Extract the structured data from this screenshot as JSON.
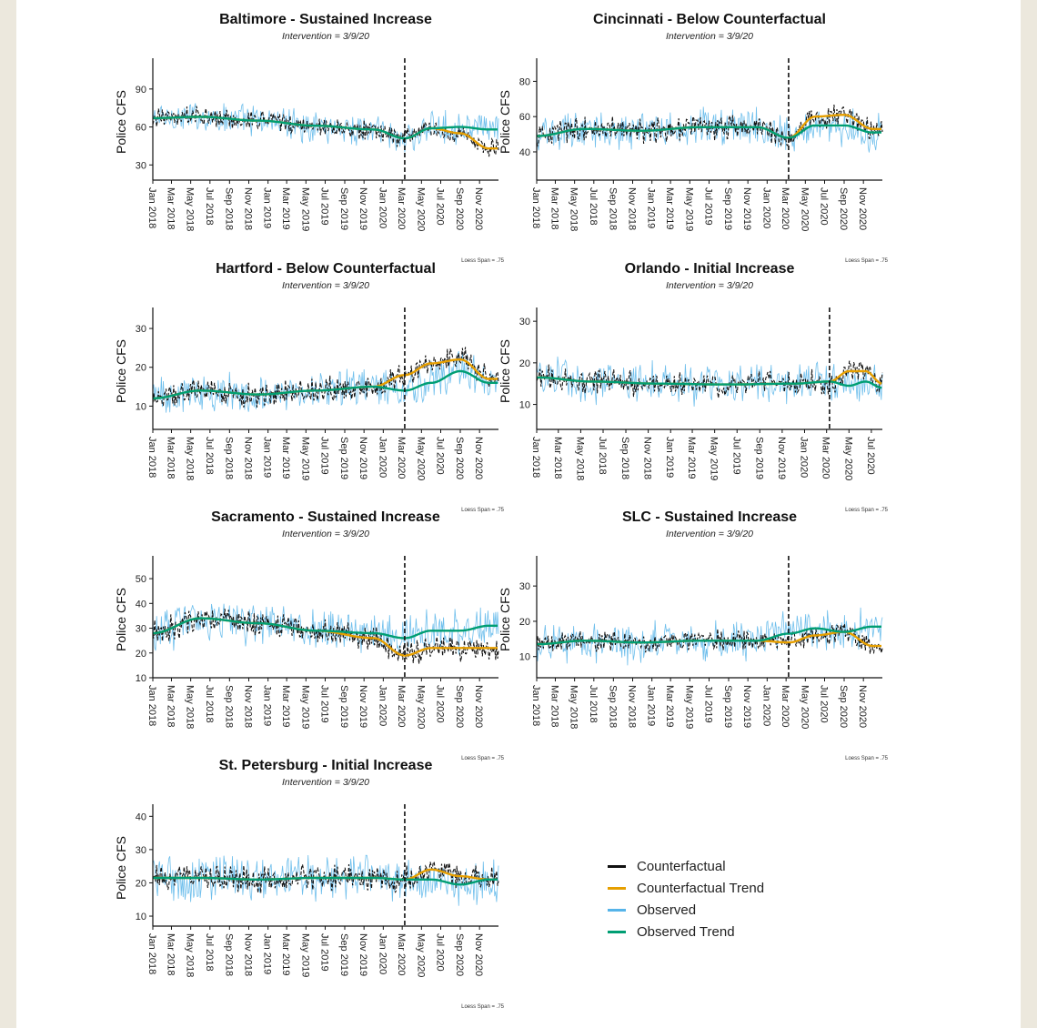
{
  "colors": {
    "counterfactual": "#111111",
    "counterfactual_trend": "#e69f00",
    "observed": "#56b4e9",
    "observed_trend": "#009e73"
  },
  "legend": {
    "items": [
      {
        "label": "Counterfactual",
        "color": "#111111"
      },
      {
        "label": "Counterfactual Trend",
        "color": "#e69f00"
      },
      {
        "label": "Observed",
        "color": "#56b4e9"
      },
      {
        "label": "Observed Trend",
        "color": "#009e73"
      }
    ]
  },
  "chart_data": [
    {
      "type": "line",
      "title": "Baltimore - Sustained Increase",
      "subtitle": "Intervention = 3/9/20",
      "ylabel": "Police CFS",
      "caption": "Loess Span = .75",
      "ylim": [
        18,
        110
      ],
      "yticks": [
        30,
        60,
        90
      ],
      "xlim": [
        "2018-01-01",
        "2020-12-31"
      ],
      "xticks": [
        "2018-01-01",
        "2018-03-01",
        "2018-05-01",
        "2018-07-01",
        "2018-09-01",
        "2018-11-01",
        "2019-01-01",
        "2019-03-01",
        "2019-05-01",
        "2019-07-01",
        "2019-09-01",
        "2019-11-01",
        "2020-01-01",
        "2020-03-01",
        "2020-05-01",
        "2020-07-01",
        "2020-09-01",
        "2020-11-01"
      ],
      "xticklabels": [
        "Jan 2018",
        "Mar 2018",
        "May 2018",
        "Jul 2018",
        "Sep 2018",
        "Nov 2018",
        "Jan 2019",
        "Mar 2019",
        "May 2019",
        "Jul 2019",
        "Sep 2019",
        "Nov 2019",
        "Jan 2020",
        "Mar 2020",
        "May 2020",
        "Jul 2020",
        "Sep 2020",
        "Nov 2020"
      ],
      "intervention": "2020-03-09",
      "series": [
        {
          "name": "Counterfactual Trend",
          "x": [
            "2018-01-01",
            "2018-06-01",
            "2018-12-01",
            "2019-06-01",
            "2019-12-01",
            "2020-03-09",
            "2020-06-01",
            "2020-09-01",
            "2020-12-01"
          ],
          "values": [
            67,
            68,
            65,
            61,
            58,
            51,
            59,
            55,
            43
          ]
        },
        {
          "name": "Observed Trend",
          "x": [
            "2018-01-01",
            "2018-06-01",
            "2018-12-01",
            "2019-06-01",
            "2019-12-01",
            "2020-03-09",
            "2020-06-01",
            "2020-09-01",
            "2020-12-01"
          ],
          "values": [
            67,
            68,
            65,
            61,
            58,
            51,
            59,
            60,
            58
          ]
        }
      ],
      "noise": {
        "observed_amp": 15,
        "counterfactual_amp": 9
      }
    },
    {
      "type": "line",
      "title": "Cincinnati - Below Counterfactual",
      "subtitle": "Intervention = 3/9/20",
      "ylabel": "Police CFS",
      "caption": "Loess Span = .75",
      "ylim": [
        24,
        90
      ],
      "yticks": [
        40,
        60,
        80
      ],
      "xlim": [
        "2018-01-01",
        "2020-12-31"
      ],
      "xticks": [
        "2018-01-01",
        "2018-03-01",
        "2018-05-01",
        "2018-07-01",
        "2018-09-01",
        "2018-11-01",
        "2019-01-01",
        "2019-03-01",
        "2019-05-01",
        "2019-07-01",
        "2019-09-01",
        "2019-11-01",
        "2020-01-01",
        "2020-03-01",
        "2020-05-01",
        "2020-07-01",
        "2020-09-01",
        "2020-11-01"
      ],
      "xticklabels": [
        "Jan 2018",
        "Mar 2018",
        "May 2018",
        "Jul 2018",
        "Sep 2018",
        "Nov 2018",
        "Jan 2019",
        "Mar 2019",
        "May 2019",
        "Jul 2019",
        "Sep 2019",
        "Nov 2019",
        "Jan 2020",
        "Mar 2020",
        "May 2020",
        "Jul 2020",
        "Sep 2020",
        "Nov 2020"
      ],
      "intervention": "2020-03-09",
      "series": [
        {
          "name": "Counterfactual Trend",
          "x": [
            "2018-01-01",
            "2018-06-01",
            "2018-12-01",
            "2019-06-01",
            "2019-12-01",
            "2020-03-09",
            "2020-06-01",
            "2020-09-01",
            "2020-12-01"
          ],
          "values": [
            49,
            53,
            52,
            54,
            54,
            48,
            60,
            61,
            53
          ]
        },
        {
          "name": "Observed Trend",
          "x": [
            "2018-01-01",
            "2018-06-01",
            "2018-12-01",
            "2019-06-01",
            "2019-12-01",
            "2020-03-09",
            "2020-06-01",
            "2020-09-01",
            "2020-12-01"
          ],
          "values": [
            49,
            53,
            52,
            54,
            54,
            48,
            55,
            55,
            51
          ]
        }
      ],
      "noise": {
        "observed_amp": 13,
        "counterfactual_amp": 8
      }
    },
    {
      "type": "line",
      "title": "Hartford - Below Counterfactual",
      "subtitle": "Intervention = 3/9/20",
      "ylabel": "Police CFS",
      "caption": "Loess Span = .75",
      "ylim": [
        4,
        34
      ],
      "yticks": [
        10,
        20,
        30
      ],
      "xlim": [
        "2018-01-01",
        "2020-12-31"
      ],
      "xticks": [
        "2018-01-01",
        "2018-03-01",
        "2018-05-01",
        "2018-07-01",
        "2018-09-01",
        "2018-11-01",
        "2019-01-01",
        "2019-03-01",
        "2019-05-01",
        "2019-07-01",
        "2019-09-01",
        "2019-11-01",
        "2020-01-01",
        "2020-03-01",
        "2020-05-01",
        "2020-07-01",
        "2020-09-01",
        "2020-11-01"
      ],
      "xticklabels": [
        "Jan 2018",
        "Mar 2018",
        "May 2018",
        "Jul 2018",
        "Sep 2018",
        "Nov 2018",
        "Jan 2019",
        "Mar 2019",
        "May 2019",
        "Jul 2019",
        "Sep 2019",
        "Nov 2019",
        "Jan 2020",
        "Mar 2020",
        "May 2020",
        "Jul 2020",
        "Sep 2020",
        "Nov 2020"
      ],
      "intervention": "2020-03-09",
      "series": [
        {
          "name": "Counterfactual Trend",
          "x": [
            "2018-01-01",
            "2018-06-01",
            "2018-12-01",
            "2019-06-01",
            "2019-12-01",
            "2020-03-09",
            "2020-06-01",
            "2020-09-01",
            "2020-12-01"
          ],
          "values": [
            12,
            14,
            13,
            14,
            15,
            18,
            21,
            22,
            17
          ]
        },
        {
          "name": "Observed Trend",
          "x": [
            "2018-01-01",
            "2018-06-01",
            "2018-12-01",
            "2019-06-01",
            "2019-12-01",
            "2020-03-09",
            "2020-06-01",
            "2020-09-01",
            "2020-12-01"
          ],
          "values": [
            12,
            14,
            13,
            14,
            15,
            14,
            16,
            19,
            16
          ]
        }
      ],
      "noise": {
        "observed_amp": 6,
        "counterfactual_amp": 4
      }
    },
    {
      "type": "line",
      "title": "Orlando - Initial Increase",
      "subtitle": "Intervention = 3/9/20",
      "ylabel": "Police CFS",
      "caption": "Loess Span = .75",
      "ylim": [
        4,
        32
      ],
      "yticks": [
        10,
        20,
        30
      ],
      "xlim": [
        "2018-01-01",
        "2020-07-31"
      ],
      "xticks": [
        "2018-01-01",
        "2018-03-01",
        "2018-05-01",
        "2018-07-01",
        "2018-09-01",
        "2018-11-01",
        "2019-01-01",
        "2019-03-01",
        "2019-05-01",
        "2019-07-01",
        "2019-09-01",
        "2019-11-01",
        "2020-01-01",
        "2020-03-01",
        "2020-05-01",
        "2020-07-01"
      ],
      "xticklabels": [
        "Jan 2018",
        "Mar 2018",
        "May 2018",
        "Jul 2018",
        "Sep 2018",
        "Nov 2018",
        "Jan 2019",
        "Mar 2019",
        "May 2019",
        "Jul 2019",
        "Sep 2019",
        "Nov 2019",
        "Jan 2020",
        "Mar 2020",
        "May 2020",
        "Jul 2020"
      ],
      "intervention": "2020-03-09",
      "series": [
        {
          "name": "Counterfactual Trend",
          "x": [
            "2018-01-01",
            "2018-06-01",
            "2018-12-01",
            "2019-06-01",
            "2019-12-01",
            "2020-03-09",
            "2020-05-01",
            "2020-06-15",
            "2020-07-31"
          ],
          "values": [
            16.5,
            15.5,
            15,
            14.8,
            15,
            15.5,
            18,
            18,
            15
          ]
        },
        {
          "name": "Observed Trend",
          "x": [
            "2018-01-01",
            "2018-06-01",
            "2018-12-01",
            "2019-06-01",
            "2019-12-01",
            "2020-03-09",
            "2020-05-01",
            "2020-06-15",
            "2020-07-31"
          ],
          "values": [
            16.5,
            15.5,
            15,
            14.8,
            15,
            15.5,
            14.5,
            15.5,
            14
          ]
        }
      ],
      "noise": {
        "observed_amp": 6,
        "counterfactual_amp": 3.5
      }
    },
    {
      "type": "line",
      "title": "Sacramento - Sustained Increase",
      "subtitle": "Intervention = 3/9/20",
      "ylabel": "Police CFS",
      "caption": "Loess Span = .75",
      "ylim": [
        10,
        57
      ],
      "yticks": [
        10,
        20,
        30,
        40,
        50
      ],
      "xlim": [
        "2018-01-01",
        "2020-12-31"
      ],
      "xticks": [
        "2018-01-01",
        "2018-03-01",
        "2018-05-01",
        "2018-07-01",
        "2018-09-01",
        "2018-11-01",
        "2019-01-01",
        "2019-03-01",
        "2019-05-01",
        "2019-07-01",
        "2019-09-01",
        "2019-11-01",
        "2020-01-01",
        "2020-03-01",
        "2020-05-01",
        "2020-07-01",
        "2020-09-01",
        "2020-11-01"
      ],
      "xticklabels": [
        "Jan 2018",
        "Mar 2018",
        "May 2018",
        "Jul 2018",
        "Sep 2018",
        "Nov 2018",
        "Jan 2019",
        "Mar 2019",
        "May 2019",
        "Jul 2019",
        "Sep 2019",
        "Nov 2019",
        "Jan 2020",
        "Mar 2020",
        "May 2020",
        "Jul 2020",
        "Sep 2020",
        "Nov 2020"
      ],
      "intervention": "2020-03-09",
      "series": [
        {
          "name": "Counterfactual Trend",
          "x": [
            "2018-01-01",
            "2018-06-01",
            "2018-12-01",
            "2019-06-01",
            "2019-12-01",
            "2020-03-09",
            "2020-06-01",
            "2020-09-01",
            "2020-12-01"
          ],
          "values": [
            28,
            34,
            32,
            29,
            26,
            19,
            22,
            22,
            22
          ]
        },
        {
          "name": "Observed Trend",
          "x": [
            "2018-01-01",
            "2018-06-01",
            "2018-12-01",
            "2019-06-01",
            "2019-12-01",
            "2020-03-09",
            "2020-06-01",
            "2020-09-01",
            "2020-12-01"
          ],
          "values": [
            28,
            34,
            32,
            29,
            28,
            26,
            29,
            29,
            31
          ]
        }
      ],
      "noise": {
        "observed_amp": 10,
        "counterfactual_amp": 6
      }
    },
    {
      "type": "line",
      "title": "SLC - Sustained Increase",
      "subtitle": "Intervention = 3/9/20",
      "ylabel": "Police CFS",
      "caption": "Loess Span = .75",
      "ylim": [
        4,
        37
      ],
      "yticks": [
        10,
        20,
        30
      ],
      "xlim": [
        "2018-01-01",
        "2020-12-31"
      ],
      "xticks": [
        "2018-01-01",
        "2018-03-01",
        "2018-05-01",
        "2018-07-01",
        "2018-09-01",
        "2018-11-01",
        "2019-01-01",
        "2019-03-01",
        "2019-05-01",
        "2019-07-01",
        "2019-09-01",
        "2019-11-01",
        "2020-01-01",
        "2020-03-01",
        "2020-05-01",
        "2020-07-01",
        "2020-09-01",
        "2020-11-01"
      ],
      "xticklabels": [
        "Jan 2018",
        "Mar 2018",
        "May 2018",
        "Jul 2018",
        "Sep 2018",
        "Nov 2018",
        "Jan 2019",
        "Mar 2019",
        "May 2019",
        "Jul 2019",
        "Sep 2019",
        "Nov 2019",
        "Jan 2020",
        "Mar 2020",
        "May 2020",
        "Jul 2020",
        "Sep 2020",
        "Nov 2020"
      ],
      "intervention": "2020-03-09",
      "series": [
        {
          "name": "Counterfactual Trend",
          "x": [
            "2018-01-01",
            "2018-06-01",
            "2018-12-01",
            "2019-06-01",
            "2019-12-01",
            "2020-03-09",
            "2020-06-01",
            "2020-09-01",
            "2020-12-01"
          ],
          "values": [
            13.5,
            14.5,
            14,
            14.5,
            14.5,
            14,
            16,
            17,
            13
          ]
        },
        {
          "name": "Observed Trend",
          "x": [
            "2018-01-01",
            "2018-06-01",
            "2018-12-01",
            "2019-06-01",
            "2019-12-01",
            "2020-03-09",
            "2020-06-01",
            "2020-09-01",
            "2020-12-01"
          ],
          "values": [
            13.5,
            14.5,
            14,
            14.5,
            14.5,
            16.5,
            18,
            17,
            18.5
          ]
        }
      ],
      "noise": {
        "observed_amp": 7,
        "counterfactual_amp": 3.5
      }
    },
    {
      "type": "line",
      "title": "St. Petersburg - Initial Increase",
      "subtitle": "Intervention = 3/9/20",
      "ylabel": "Police CFS",
      "caption": "Loess Span = .75",
      "ylim": [
        7,
        42
      ],
      "yticks": [
        10,
        20,
        30,
        40
      ],
      "xlim": [
        "2018-01-01",
        "2020-12-31"
      ],
      "xticks": [
        "2018-01-01",
        "2018-03-01",
        "2018-05-01",
        "2018-07-01",
        "2018-09-01",
        "2018-11-01",
        "2019-01-01",
        "2019-03-01",
        "2019-05-01",
        "2019-07-01",
        "2019-09-01",
        "2019-11-01",
        "2020-01-01",
        "2020-03-01",
        "2020-05-01",
        "2020-07-01",
        "2020-09-01",
        "2020-11-01"
      ],
      "xticklabels": [
        "Jan 2018",
        "Mar 2018",
        "May 2018",
        "Jul 2018",
        "Sep 2018",
        "Nov 2018",
        "Jan 2019",
        "Mar 2019",
        "May 2019",
        "Jul 2019",
        "Sep 2019",
        "Nov 2019",
        "Jan 2020",
        "Mar 2020",
        "May 2020",
        "Jul 2020",
        "Sep 2020",
        "Nov 2020"
      ],
      "intervention": "2020-03-09",
      "series": [
        {
          "name": "Counterfactual Trend",
          "x": [
            "2018-01-01",
            "2018-06-01",
            "2018-12-01",
            "2019-06-01",
            "2019-12-01",
            "2020-03-09",
            "2020-06-01",
            "2020-09-01",
            "2020-12-01"
          ],
          "values": [
            21.5,
            21.5,
            21,
            21.5,
            21.5,
            21,
            24,
            22,
            21
          ]
        },
        {
          "name": "Observed Trend",
          "x": [
            "2018-01-01",
            "2018-06-01",
            "2018-12-01",
            "2019-06-01",
            "2019-12-01",
            "2020-03-09",
            "2020-06-01",
            "2020-09-01",
            "2020-12-01"
          ],
          "values": [
            21.5,
            21.5,
            21,
            21.5,
            21.5,
            21,
            21,
            19.5,
            21
          ]
        }
      ],
      "noise": {
        "observed_amp": 8,
        "counterfactual_amp": 4.5
      }
    }
  ]
}
